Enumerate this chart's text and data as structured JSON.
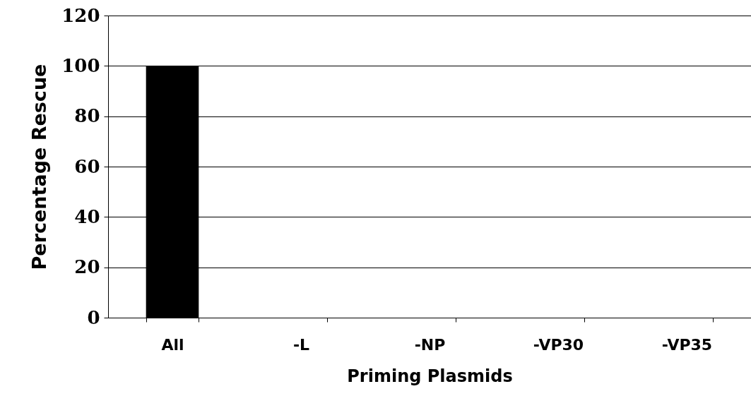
{
  "chart_data": {
    "type": "bar",
    "xlabel": "Priming Plasmids",
    "ylabel": "Percentage Rescue",
    "categories": [
      "All",
      "-L",
      "-NP",
      "-VP30",
      "-VP35"
    ],
    "values": [
      100,
      0,
      0,
      0,
      0
    ],
    "color": "#000000",
    "ylim": [
      0,
      120
    ],
    "yticks": [
      0,
      20,
      40,
      60,
      80,
      100,
      120
    ],
    "grid": "y"
  }
}
